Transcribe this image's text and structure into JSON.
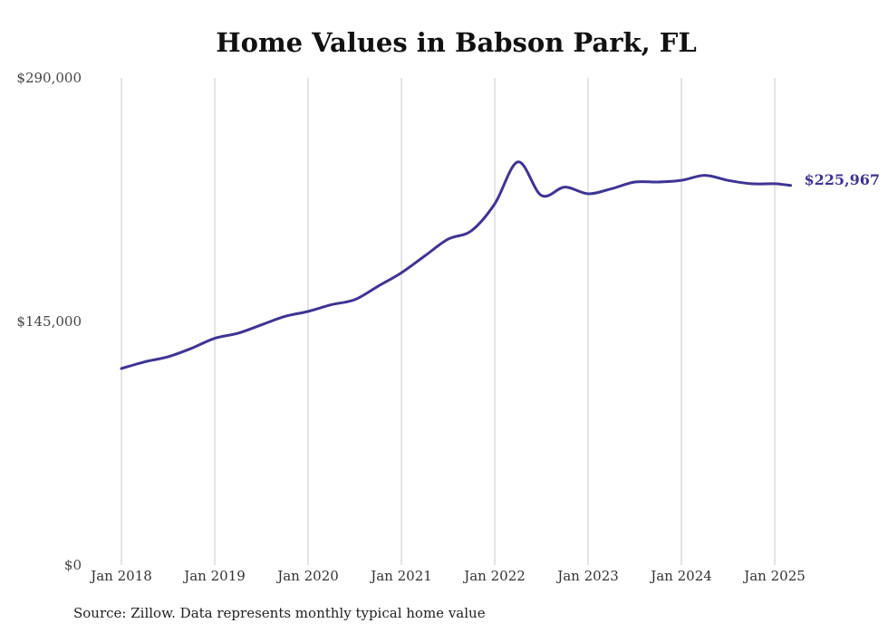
{
  "chart_data": {
    "type": "line",
    "title": "Home Values in Babson Park, FL",
    "xlabel": "",
    "ylabel": "",
    "ylim": [
      0,
      290000
    ],
    "y_ticks": [
      {
        "value": 0,
        "label": "$0"
      },
      {
        "value": 145000,
        "label": "$145,000"
      },
      {
        "value": 290000,
        "label": "$290,000"
      }
    ],
    "x_ticks": [
      {
        "value": 2018,
        "label": "Jan 2018"
      },
      {
        "value": 2019,
        "label": "Jan 2019"
      },
      {
        "value": 2020,
        "label": "Jan 2020"
      },
      {
        "value": 2021,
        "label": "Jan 2021"
      },
      {
        "value": 2022,
        "label": "Jan 2022"
      },
      {
        "value": 2023,
        "label": "Jan 2023"
      },
      {
        "value": 2024,
        "label": "Jan 2024"
      },
      {
        "value": 2025,
        "label": "Jan 2025"
      }
    ],
    "xlim": [
      2018,
      2025.17
    ],
    "grid": {
      "vertical": true,
      "horizontal": false
    },
    "series": [
      {
        "color": "#3f3494",
        "end_label": "$225,967",
        "x": [
          2018.0,
          2018.25,
          2018.5,
          2018.75,
          2019.0,
          2019.25,
          2019.5,
          2019.75,
          2020.0,
          2020.25,
          2020.5,
          2020.75,
          2021.0,
          2021.25,
          2021.5,
          2021.75,
          2022.0,
          2022.25,
          2022.5,
          2022.75,
          2023.0,
          2023.25,
          2023.5,
          2023.75,
          2024.0,
          2024.25,
          2024.5,
          2024.75,
          2025.0,
          2025.17
        ],
        "y": [
          117000,
          121000,
          124000,
          129000,
          135000,
          138000,
          143000,
          148000,
          151000,
          155000,
          158000,
          166000,
          174000,
          184000,
          194000,
          199000,
          215000,
          240000,
          220000,
          225000,
          221000,
          224000,
          228000,
          228000,
          229000,
          232000,
          229000,
          227000,
          227000,
          225967
        ]
      }
    ]
  },
  "source": "Source: Zillow. Data represents monthly typical home value"
}
